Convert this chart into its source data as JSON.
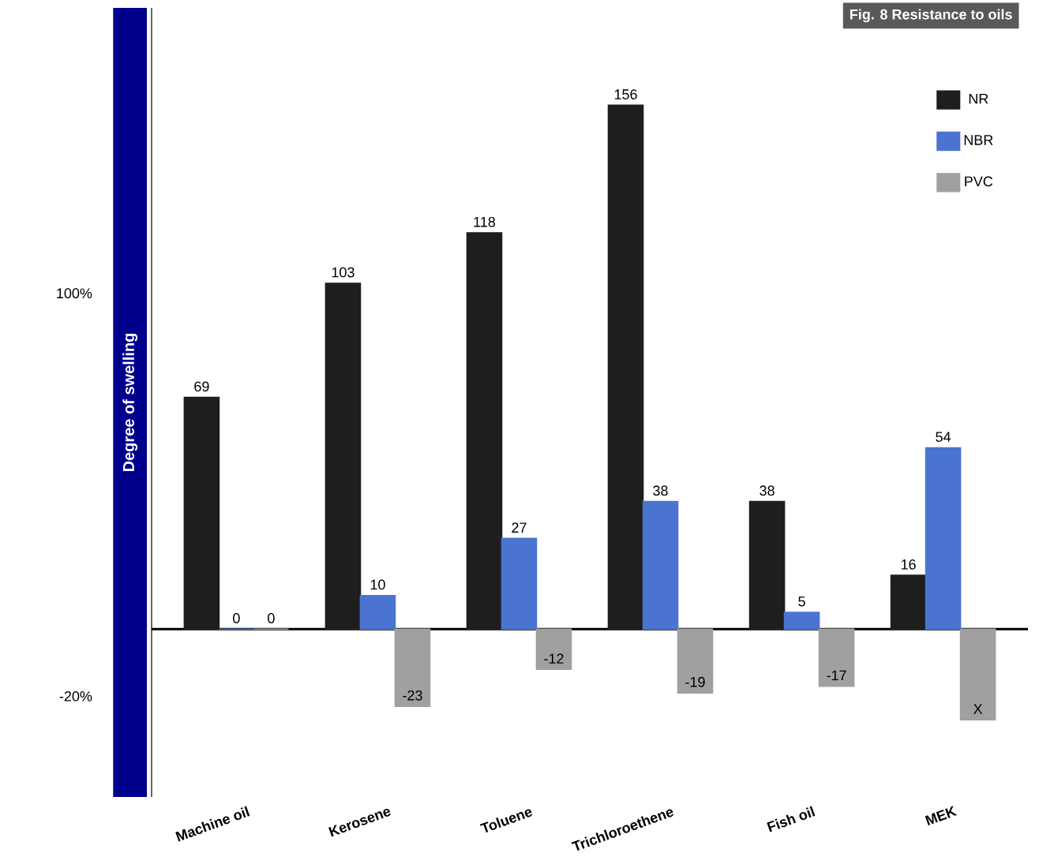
{
  "chart_data": {
    "type": "bar",
    "title": "Fig. 8 Resistance to oils",
    "ylabel": "Degree of swelling",
    "categories": [
      "Machine oil",
      "Kerosene",
      "Toluene",
      "Trichloroethene",
      "Fish oil",
      "MEK"
    ],
    "series": [
      {
        "name": "NR",
        "color": "#1e1e1e",
        "values": [
          69,
          103,
          118,
          156,
          38,
          16
        ],
        "value_labels": [
          "69",
          "103",
          "118",
          "156",
          "38",
          "16"
        ]
      },
      {
        "name": "NBR",
        "color": "#4a74d0",
        "values": [
          0,
          10,
          27,
          38,
          5,
          54
        ],
        "value_labels": [
          "0",
          "10",
          "27",
          "38",
          "5",
          "54"
        ]
      },
      {
        "name": "PVC",
        "color": "#a0a0a0",
        "values": [
          0,
          -23,
          -12,
          -19,
          -17,
          -27
        ],
        "value_labels": [
          "0",
          "-23",
          "-12",
          "-19",
          "-17",
          "X"
        ]
      }
    ],
    "ylim": [
      -50,
      185
    ],
    "yticks": [
      {
        "value": 100,
        "label": "100%"
      },
      {
        "value": -20,
        "label": "-20%"
      }
    ],
    "legend": "top right",
    "grid": false
  }
}
